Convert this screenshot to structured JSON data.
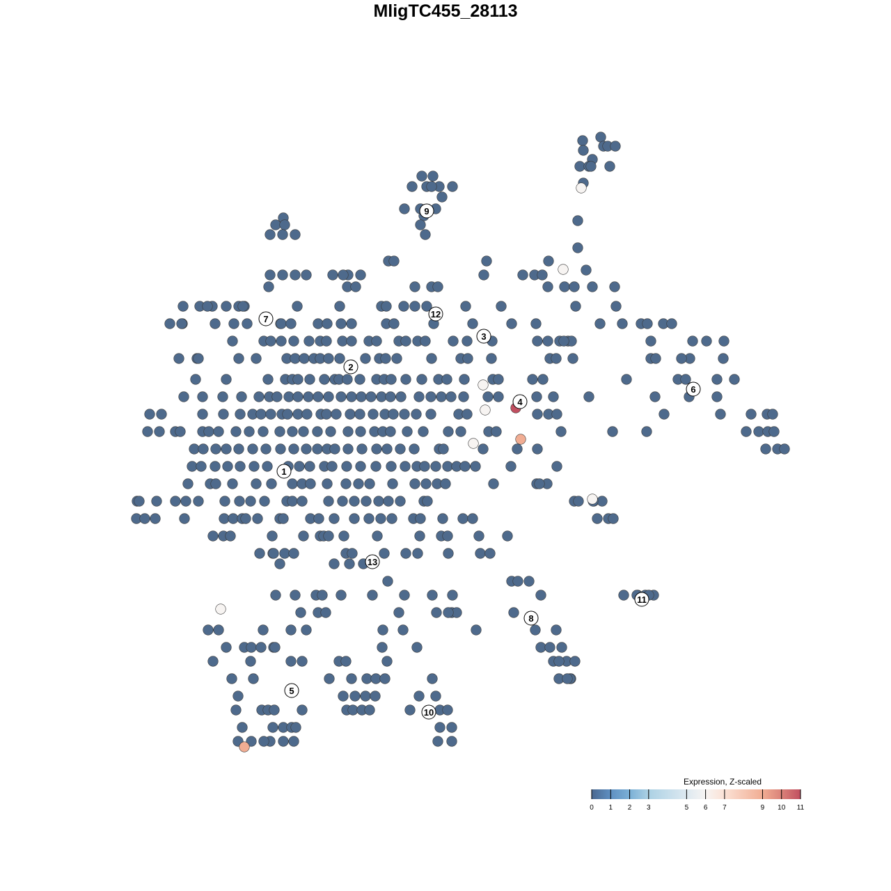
{
  "chart_data": {
    "type": "scatter",
    "title": "MligTC455_28113",
    "xlabel": "",
    "ylabel": "",
    "axes_visible": false,
    "grid": false,
    "default_expression": 0,
    "point_color_default": "#4e6a8c",
    "point_outline": "#333333",
    "rows": [
      {
        "y": 44.3,
        "x": [
          22.3
        ]
      },
      {
        "y": 43.8,
        "x": [
          19.7
        ]
      },
      {
        "y": 43.0,
        "x": [
          22.7,
          23.3,
          24.4
        ]
      },
      {
        "y": 42.4,
        "x": [
          19.8
        ]
      },
      {
        "y": 41.1,
        "x": [
          21.1
        ]
      },
      {
        "y": 40.1,
        "x": [
          19.3,
          20.6,
          20.9,
          23.6
        ]
      },
      {
        "y": 38.7,
        "x": [
          -3.4,
          -1.8
        ]
      },
      {
        "y": 37.7,
        "x": [
          19.8
        ]
      },
      {
        "y": 37.2,
        "x": [
          -4.8,
          -2.7,
          -0.9,
          -2.0,
          1.0
        ]
      },
      {
        "y": 35.7,
        "x": [
          -0.5
        ]
      },
      {
        "y": 34.0,
        "x": [
          -5.9,
          -3.6,
          -1.4
        ]
      },
      {
        "y": 33.0,
        "x": [
          -3.1
        ]
      },
      {
        "y": 32.7,
        "x": [
          -23.3
        ]
      },
      {
        "y": 32.3,
        "x": [
          19.0
        ]
      },
      {
        "y": 31.7,
        "x": [
          -3.6,
          -24.4,
          -23.1
        ]
      },
      {
        "y": 30.3,
        "x": [
          -2.9,
          -25.2,
          -23.4,
          -21.6
        ]
      },
      {
        "y": 28.4,
        "x": [
          19.0
        ]
      },
      {
        "y": 26.5,
        "x": [
          -8.2,
          -7.4,
          5.9,
          14.8
        ]
      },
      {
        "y": 25.2,
        "x": [
          20.2
        ]
      },
      {
        "y": 24.5,
        "x": [
          -14.0,
          -14.7,
          -16.2,
          -25.2,
          -23.4,
          -21.6,
          -20.0,
          -12.2,
          11.1,
          12.8,
          13.9,
          5.5
        ]
      },
      {
        "y": 22.8,
        "x": [
          -25.4,
          -14.1,
          -12.9,
          -4.4,
          -2.0,
          -1.1,
          17.1,
          14.7,
          18.5,
          24.3,
          21.1
        ]
      },
      {
        "y": 20.0,
        "x": [
          -33.5,
          -31.5,
          -29.7,
          -28.9,
          -37.7,
          -35.3,
          -34.2,
          -29.1,
          -21.3,
          -15.2,
          -9.2,
          -8.5,
          -6.0,
          -4.4,
          -2.7,
          2.9,
          8.0,
          18.7,
          24.5
        ]
      },
      {
        "y": 17.5,
        "x": [
          -39.6,
          -37.8,
          -37.9,
          -33.1,
          -30.4,
          -28.5,
          -23.7,
          -23.6,
          -22.2,
          -18.3,
          -17.0,
          -15.0,
          -13.5,
          -8.5,
          -7.4,
          -1.7,
          3.9,
          9.5,
          13.0,
          25.4,
          28.1,
          29.0,
          31.3,
          32.5,
          22.2
        ]
      },
      {
        "y": 15.0,
        "x": [
          -30.6,
          -26.1,
          -25.1,
          -23.6,
          -21.8,
          -19.6,
          -18.0,
          -17.1,
          -14.8,
          -13.5,
          -11.0,
          -9.9,
          -6.7,
          -5.7,
          -4.0,
          -2.9,
          1.1,
          3.1,
          6.7,
          13.2,
          14.7,
          16.4,
          17.6,
          18.1,
          17.0,
          29.5,
          35.5,
          37.5,
          40.0
        ]
      },
      {
        "y": 12.5,
        "x": [
          -38.3,
          -35.7,
          -35.5,
          -29.7,
          -27.2,
          -22.8,
          -21.6,
          -20.3,
          -18.9,
          -18.0,
          -16.8,
          -15.2,
          -11.5,
          -9.5,
          -8.6,
          -7.0,
          -2.0,
          2.2,
          3.2,
          6.6,
          15.0,
          15.9,
          18.3,
          29.5,
          30.2,
          35.1,
          33.9,
          39.9
        ]
      },
      {
        "y": 9.5,
        "x": [
          -35.9,
          -31.5,
          -25.5,
          -23.0,
          -22.0,
          -21.2,
          -19.5,
          -17.4,
          -15.9,
          -15.3,
          -14.1,
          -12.3,
          -9.9,
          -8.8,
          -7.8,
          -5.7,
          -3.4,
          -1.0,
          0.2,
          2.7,
          6.8,
          7.6,
          12.5,
          14.0,
          33.4,
          34.5,
          39.0,
          41.5,
          26.0
        ]
      },
      {
        "y": 7.0,
        "x": [
          -37.6,
          -34.9,
          -32.0,
          -29.3,
          -26.8,
          -25.3,
          -24.2,
          -22.5,
          -21.2,
          -19.7,
          -18.3,
          -16.8,
          -15.0,
          -13.5,
          -12.1,
          -10.7,
          -9.2,
          -7.9,
          -6.4,
          -3.8,
          -2.1,
          -0.6,
          0.8,
          2.6,
          6.1,
          7.6,
          13.1,
          15.5,
          20.6,
          30.1,
          35.0,
          39.0
        ]
      },
      {
        "y": 4.5,
        "x": [
          -40.8,
          -42.5,
          -34.9,
          -31.9,
          -29.5,
          -27.7,
          -26.5,
          -25.1,
          -23.5,
          -22.7,
          -21.2,
          -19.9,
          -17.9,
          -17.1,
          -15.7,
          -13.7,
          -12.3,
          -10.4,
          -8.7,
          -7.5,
          -5.9,
          -4.2,
          -2.1,
          1.9,
          3.1,
          13.2,
          14.8,
          16.0,
          31.4,
          39.5,
          43.9,
          46.2,
          47.0
        ]
      },
      {
        "y": 2.0,
        "x": [
          -42.8,
          -41.1,
          -38.8,
          -38.1,
          -34.9,
          -34.0,
          -32.6,
          -30.1,
          -28.2,
          -26.2,
          -23.8,
          -22.0,
          -20.4,
          -18.4,
          -16.5,
          -14.0,
          -12.2,
          -10.2,
          -9.0,
          -7.9,
          -5.5,
          -3.2,
          0.4,
          2.2,
          6.2,
          7.3,
          16.6,
          24.0,
          28.9,
          43.2,
          45.0,
          46.3,
          47.2
        ]
      },
      {
        "y": -0.5,
        "x": [
          -36.1,
          -34.8,
          -33.0,
          -31.5,
          -29.7,
          -27.7,
          -25.8,
          -23.7,
          -21.8,
          -20.0,
          -18.4,
          -17.0,
          -15.9,
          -14.0,
          -12.0,
          -9.9,
          -8.4,
          -6.5,
          -4.5,
          -0.9,
          -0.3,
          5.4,
          10.3,
          13.2,
          46.0,
          47.7,
          48.7
        ]
      },
      {
        "y": -3.0,
        "x": [
          -36.4,
          -35.1,
          -33.1,
          -31.3,
          -29.5,
          -27.5,
          -25.6,
          -22.6,
          -21.0,
          -19.5,
          -17.4,
          -16.3,
          -14.2,
          -12.2,
          -10.0,
          -7.8,
          -5.8,
          -4.1,
          -3.0,
          -1.4,
          0.3,
          1.6,
          2.8,
          4.3,
          9.4,
          16.0
        ]
      },
      {
        "y": -5.5,
        "x": [
          -37.0,
          -33.8,
          -33.0,
          -30.6,
          -27.2,
          -25.0,
          -22.0,
          -20.6,
          -19.4,
          -17.0,
          -14.3,
          -12.5,
          -10.9,
          -7.6,
          -4.4,
          -2.8,
          -1.2,
          0.0,
          6.9,
          13.1,
          14.6,
          13.5
        ]
      },
      {
        "y": -8.0,
        "x": [
          -44.3,
          -44.0,
          -41.5,
          -38.8,
          -37.3,
          -35.5,
          -31.7,
          -29.6,
          -28.0,
          -26.0,
          -22.8,
          -22.0,
          -20.6,
          -16.8,
          -14.8,
          -13.1,
          -11.4,
          -9.6,
          -8.2,
          -6.5,
          -3.1,
          -2.6,
          18.5,
          19.1,
          21.3,
          22.5,
          21.2
        ]
      },
      {
        "y": -10.5,
        "x": [
          -44.4,
          -43.2,
          -41.7,
          -37.5,
          -31.8,
          -30.5,
          -29.2,
          -28.7,
          -27.0,
          -23.8,
          -23.3,
          -19.4,
          -18.2,
          -16.0,
          -13.1,
          -11.0,
          -9.3,
          -7.7,
          -4.6,
          -3.6,
          -0.4,
          2.5,
          3.9,
          23.4,
          24.1,
          21.8
        ]
      },
      {
        "y": -13.0,
        "x": [
          -33.4,
          -31.9,
          -30.9,
          -24.9,
          -20.4,
          -18.0,
          -17.5,
          -16.8,
          -14.6,
          -9.8,
          -3.7,
          -0.6,
          0.3,
          4.8,
          8.9
        ]
      },
      {
        "y": -15.5,
        "x": [
          -26.7,
          -24.8,
          -23.1,
          -21.8,
          -14.3,
          -13.4,
          -8.8,
          -5.7,
          -4.0,
          0.4,
          5.0,
          6.4,
          -24.7
        ]
      },
      {
        "y": -17.0,
        "x": [
          -23.8,
          -16.0,
          -13.8,
          -11.8
        ]
      },
      {
        "y": -19.5,
        "x": [
          9.5,
          -8.3,
          10.4,
          12.0
        ]
      },
      {
        "y": -21.5,
        "x": [
          -24.4,
          -21.6,
          -18.6,
          -17.7,
          -15.0,
          -10.5,
          -5.9,
          -1.9,
          1.0,
          13.7,
          25.6,
          27.6,
          28.7,
          29.9,
          29.2,
          27.5
        ]
      },
      {
        "y": -24.0,
        "x": [
          -20.8,
          -18.3,
          -17.2,
          -6.7,
          -1.3,
          0.9,
          9.8,
          1.6,
          0.4
        ]
      },
      {
        "y": -26.5,
        "x": [
          -34.1,
          -22.2,
          -20.0,
          -26.2,
          -32.6,
          -6.1,
          4.4,
          12.9,
          15.9,
          -9.0
        ]
      },
      {
        "y": -29.0,
        "x": [
          -31.5,
          -28.9,
          -27.9,
          -26.5,
          -24.7,
          -24.5,
          -9.1,
          -4.1,
          13.7,
          15.0,
          16.7
        ]
      },
      {
        "y": -31.0,
        "x": [
          -33.4,
          -28.0,
          -22.2,
          -20.6,
          -15.3,
          -14.3,
          -8.4,
          15.5,
          17.4,
          16.3,
          18.6
        ]
      },
      {
        "y": -33.5,
        "x": [
          -30.7,
          -27.6,
          -16.7,
          -13.5,
          -11.3,
          -10.0,
          -8.7,
          -1.9,
          16.3,
          18.0,
          17.9,
          17.5
        ]
      },
      {
        "y": -36.0,
        "x": [
          -29.8,
          -14.7,
          -13.0,
          -11.5,
          -10.1,
          -3.8,
          -1.4
        ]
      },
      {
        "y": -38.0,
        "x": [
          -30.1,
          -26.4,
          -25.5,
          -24.6,
          -20.6,
          -14.2,
          -13.3,
          -12.0,
          -10.9,
          -5.1,
          -0.8,
          0.3
        ]
      },
      {
        "y": -40.5,
        "x": [
          -29.2,
          -24.8,
          -23.3,
          -22.1,
          -21.5,
          -0.8,
          0.9
        ]
      },
      {
        "y": -42.5,
        "x": [
          -29.8,
          -27.9,
          -25.2,
          -23.3,
          -21.8,
          -1.1,
          0.9,
          -26.1
        ]
      }
    ],
    "expressing_points": [
      {
        "x": 19.5,
        "y": 37.0,
        "value": 6
      },
      {
        "x": 16.9,
        "y": 25.3,
        "value": 6
      },
      {
        "x": 5.4,
        "y": 8.7,
        "value": 6
      },
      {
        "x": 5.7,
        "y": 5.1,
        "value": 6
      },
      {
        "x": 4.0,
        "y": 0.3,
        "value": 6
      },
      {
        "x": 21.1,
        "y": -7.7,
        "value": 6
      },
      {
        "x": -32.3,
        "y": -23.5,
        "value": 6
      },
      {
        "x": 10.1,
        "y": 5.4,
        "value": 11
      },
      {
        "x": 10.8,
        "y": 0.9,
        "value": 9
      },
      {
        "x": -28.9,
        "y": -43.3,
        "value": 9
      }
    ],
    "cluster_labels": [
      {
        "label": "1",
        "x": -23.2,
        "y": -3.7
      },
      {
        "label": "2",
        "x": -13.6,
        "y": 11.3
      },
      {
        "label": "3",
        "x": 5.5,
        "y": 15.7
      },
      {
        "label": "4",
        "x": 10.7,
        "y": 6.3
      },
      {
        "label": "5",
        "x": -22.1,
        "y": -35.2
      },
      {
        "label": "6",
        "x": 35.6,
        "y": 8.1
      },
      {
        "label": "7",
        "x": -25.8,
        "y": 18.2
      },
      {
        "label": "8",
        "x": 12.3,
        "y": -24.8
      },
      {
        "label": "9",
        "x": -2.7,
        "y": 33.7
      },
      {
        "label": "10",
        "x": -2.4,
        "y": -38.3
      },
      {
        "label": "11",
        "x": 28.2,
        "y": -22.1
      },
      {
        "label": "12",
        "x": -1.4,
        "y": 18.9
      },
      {
        "label": "13",
        "x": -10.5,
        "y": -16.7
      }
    ],
    "legend": {
      "title": "Expression, Z-scaled",
      "placement": "bottom-right",
      "range": [
        0,
        11
      ],
      "ticks": [
        "0",
        "1",
        "2",
        "3",
        "5",
        "6",
        "7",
        "9",
        "10",
        "11"
      ],
      "tick_values": [
        0,
        1,
        2,
        3,
        5,
        6,
        7,
        9,
        10,
        11
      ],
      "color_stops": [
        {
          "value": 0,
          "color": "#4a6890"
        },
        {
          "value": 1,
          "color": "#5f90c2"
        },
        {
          "value": 2,
          "color": "#7bb0d6"
        },
        {
          "value": 3,
          "color": "#acd1e4"
        },
        {
          "value": 5,
          "color": "#dde9f1"
        },
        {
          "value": 6,
          "color": "#f7f4f2"
        },
        {
          "value": 7,
          "color": "#fbe1d5"
        },
        {
          "value": 9,
          "color": "#f1ad93"
        },
        {
          "value": 10,
          "color": "#da8279"
        },
        {
          "value": 11,
          "color": "#c14f60"
        }
      ]
    }
  }
}
